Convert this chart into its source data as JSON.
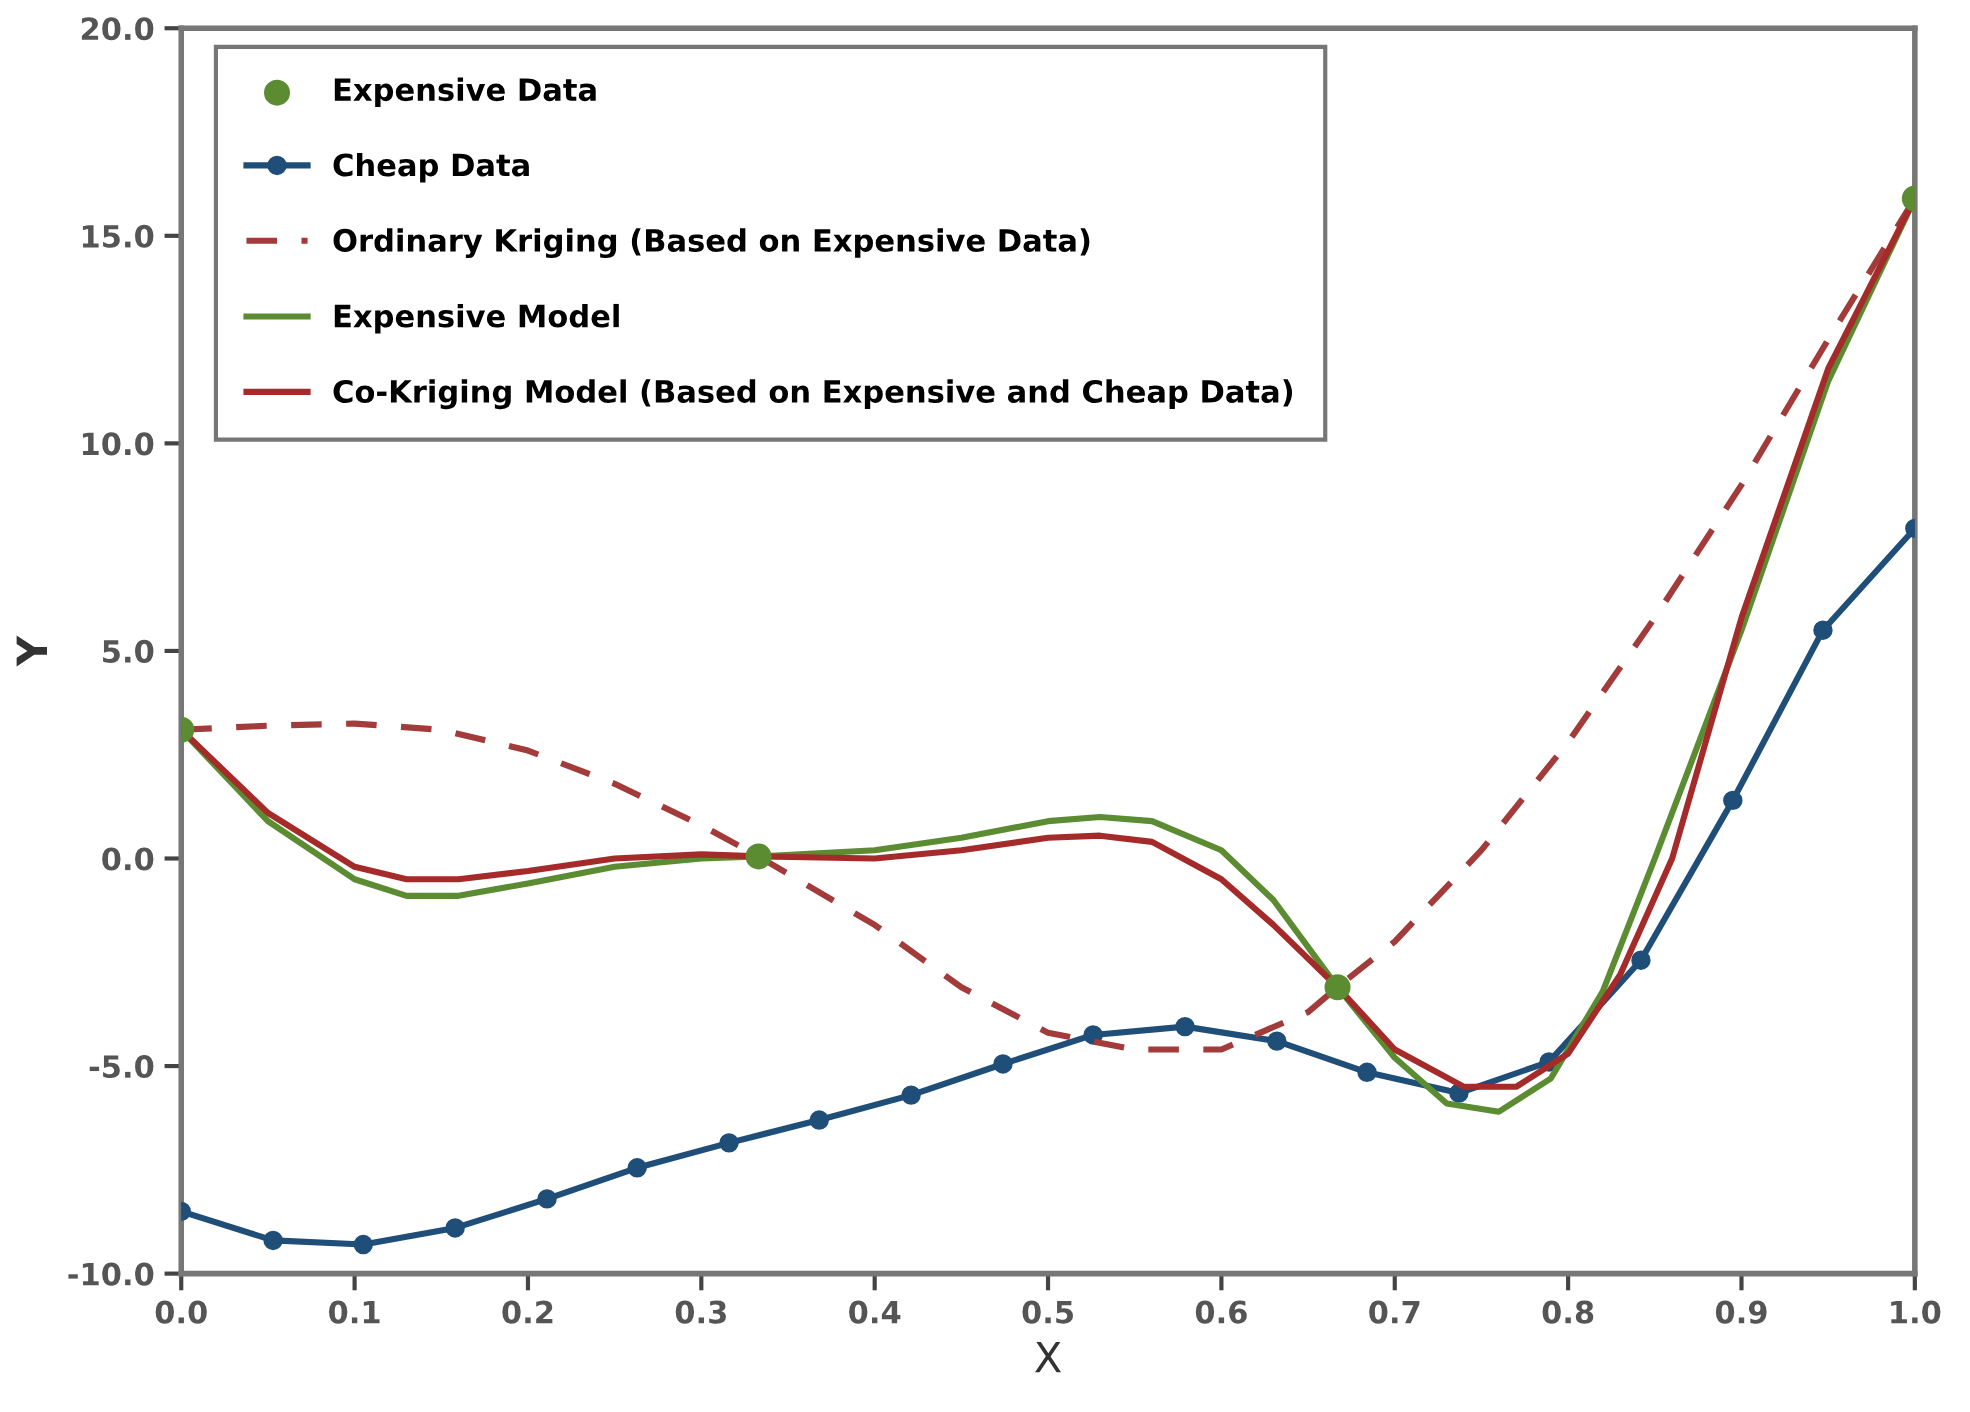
{
  "chart_data": {
    "type": "line",
    "xlabel": "X",
    "ylabel": "Y",
    "xlim": [
      0,
      1
    ],
    "ylim": [
      -10,
      20
    ],
    "xticks": [
      {
        "value": 0,
        "label": "0.0"
      },
      {
        "value": 0.1,
        "label": "0.1"
      },
      {
        "value": 0.2,
        "label": "0.2"
      },
      {
        "value": 0.3,
        "label": "0.3"
      },
      {
        "value": 0.4,
        "label": "0.4"
      },
      {
        "value": 0.5,
        "label": "0.5"
      },
      {
        "value": 0.6,
        "label": "0.6"
      },
      {
        "value": 0.7,
        "label": "0.7"
      },
      {
        "value": 0.8,
        "label": "0.8"
      },
      {
        "value": 0.9,
        "label": "0.9"
      },
      {
        "value": 1,
        "label": "1.0"
      }
    ],
    "yticks": [
      {
        "value": -10,
        "label": "-10.0"
      },
      {
        "value": -5,
        "label": "-5.0"
      },
      {
        "value": 0,
        "label": "0.0"
      },
      {
        "value": 5,
        "label": "5.0"
      },
      {
        "value": 10,
        "label": "10.0"
      },
      {
        "value": 15,
        "label": "15.0"
      },
      {
        "value": 20,
        "label": "20.0"
      }
    ],
    "grid": false,
    "legend": "top left",
    "series": [
      {
        "name": "Expensive Data",
        "type": "scatter",
        "color": "#5b8c32",
        "marker": "circle",
        "x": [
          0,
          0.333,
          0.667,
          1
        ],
        "values": [
          3.1,
          0.05,
          -3.1,
          15.9
        ]
      },
      {
        "name": "Cheap Data",
        "color": "#1f4e79",
        "marker": "circle",
        "line_style": "solid",
        "x": [
          0,
          0.053,
          0.105,
          0.158,
          0.211,
          0.263,
          0.316,
          0.368,
          0.421,
          0.474,
          0.526,
          0.579,
          0.632,
          0.684,
          0.737,
          0.789,
          0.842,
          0.895,
          0.947,
          1
        ],
        "values": [
          -8.5,
          -9.2,
          -9.3,
          -8.9,
          -8.2,
          -7.45,
          -6.85,
          -6.3,
          -5.7,
          -4.95,
          -4.25,
          -4.05,
          -4.4,
          -5.15,
          -5.65,
          -4.9,
          -2.45,
          1.4,
          5.5,
          7.95
        ]
      },
      {
        "name": "Ordinary Kriging (Based on Expensive Data)",
        "color": "#a33b3b",
        "marker": "none",
        "line_style": "dashed",
        "x": [
          0,
          0.05,
          0.1,
          0.15,
          0.2,
          0.25,
          0.3,
          0.333,
          0.4,
          0.45,
          0.5,
          0.55,
          0.6,
          0.65,
          0.667,
          0.7,
          0.75,
          0.8,
          0.85,
          0.9,
          0.95,
          1
        ],
        "values": [
          3.1,
          3.2,
          3.25,
          3.1,
          2.6,
          1.8,
          0.8,
          0.05,
          -1.6,
          -3.1,
          -4.2,
          -4.6,
          -4.6,
          -3.7,
          -3.1,
          -2.0,
          0.2,
          2.8,
          5.8,
          9.0,
          12.5,
          15.9
        ]
      },
      {
        "name": "Expensive Model",
        "color": "#5b8c32",
        "marker": "none",
        "line_style": "solid",
        "x": [
          0,
          0.05,
          0.1,
          0.13,
          0.16,
          0.2,
          0.25,
          0.3,
          0.333,
          0.4,
          0.45,
          0.5,
          0.53,
          0.56,
          0.6,
          0.63,
          0.667,
          0.7,
          0.73,
          0.76,
          0.79,
          0.82,
          0.85,
          0.9,
          0.95,
          1
        ],
        "values": [
          3.1,
          0.9,
          -0.5,
          -0.9,
          -0.9,
          -0.6,
          -0.2,
          0.0,
          0.05,
          0.2,
          0.5,
          0.9,
          1.0,
          0.9,
          0.2,
          -1.0,
          -3.1,
          -4.8,
          -5.9,
          -6.1,
          -5.3,
          -3.2,
          0.0,
          5.5,
          11.5,
          15.9
        ]
      },
      {
        "name": "Co-Kriging Model (Based on Expensive and Cheap Data)",
        "color": "#a52a2a",
        "marker": "none",
        "line_style": "solid",
        "x": [
          0,
          0.05,
          0.1,
          0.13,
          0.16,
          0.2,
          0.25,
          0.3,
          0.333,
          0.4,
          0.45,
          0.5,
          0.53,
          0.56,
          0.6,
          0.63,
          0.667,
          0.7,
          0.74,
          0.77,
          0.8,
          0.83,
          0.86,
          0.9,
          0.95,
          1
        ],
        "values": [
          3.1,
          1.1,
          -0.2,
          -0.5,
          -0.5,
          -0.3,
          0.0,
          0.1,
          0.05,
          0.0,
          0.2,
          0.5,
          0.55,
          0.4,
          -0.5,
          -1.6,
          -3.1,
          -4.6,
          -5.5,
          -5.5,
          -4.7,
          -2.8,
          0.0,
          5.8,
          11.8,
          15.9
        ]
      }
    ]
  }
}
